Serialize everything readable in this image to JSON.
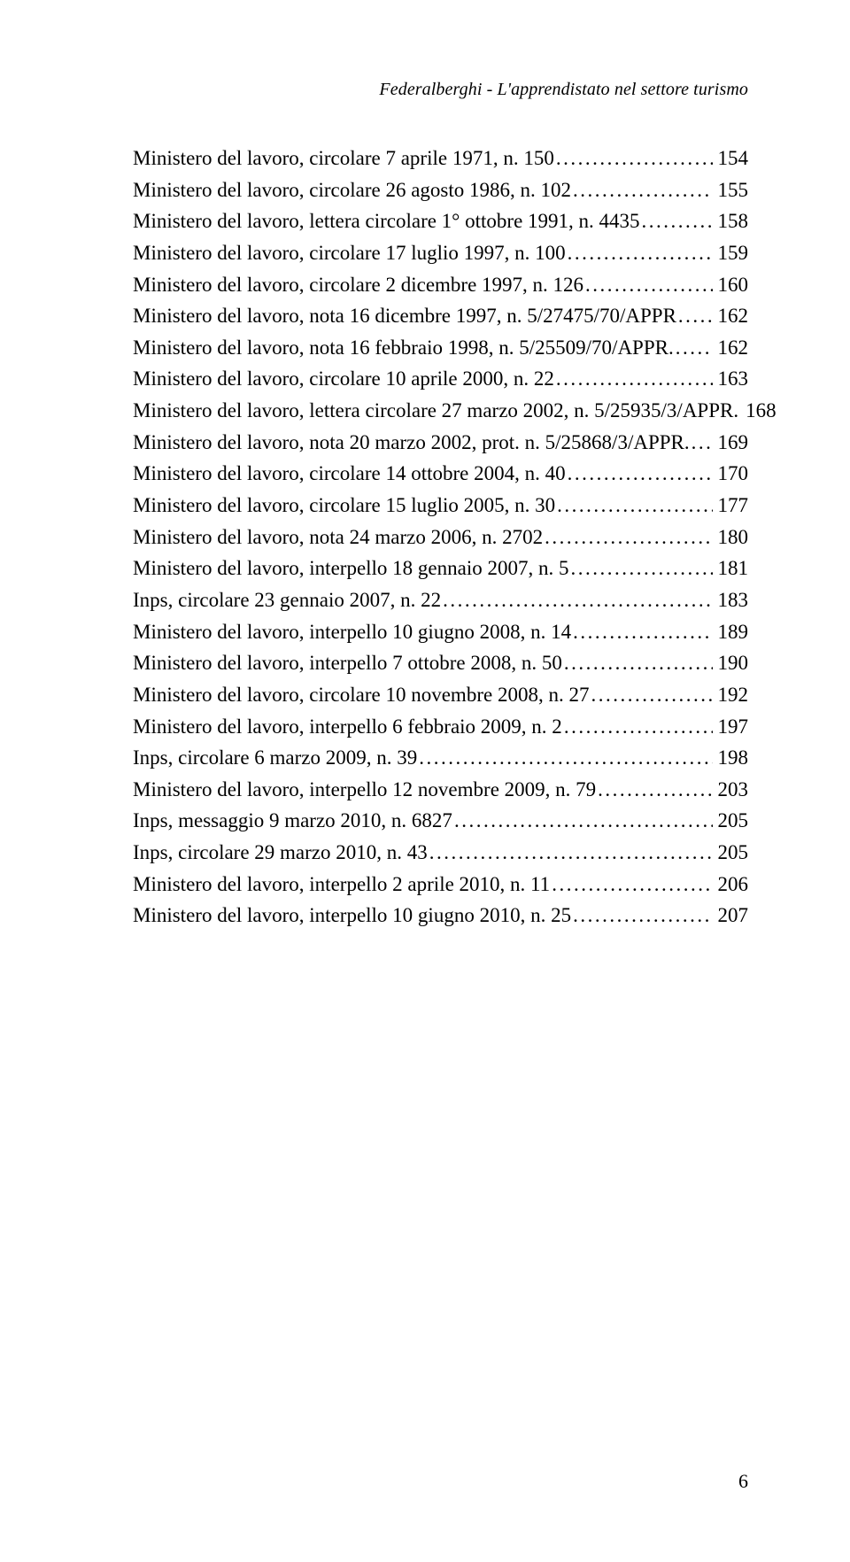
{
  "running_head": "Federalberghi - L'apprendistato nel settore turismo",
  "page_number": "6",
  "entries": [
    {
      "title": "Ministero del lavoro, circolare 7 aprile 1971, n. 150",
      "page": "154"
    },
    {
      "title": "Ministero del lavoro, circolare 26 agosto 1986, n. 102",
      "page": "155"
    },
    {
      "title": "Ministero del lavoro, lettera circolare 1° ottobre 1991, n. 4435",
      "page": "158"
    },
    {
      "title": "Ministero del lavoro, circolare 17 luglio 1997, n. 100",
      "page": "159"
    },
    {
      "title": "Ministero del lavoro, circolare 2 dicembre 1997, n. 126",
      "page": "160"
    },
    {
      "title": "Ministero del lavoro, nota 16 dicembre 1997, n. 5/27475/70/APPR",
      "page": "162"
    },
    {
      "title": "Ministero del lavoro, nota 16 febbraio 1998, n. 5/25509/70/APPR.",
      "page": "162"
    },
    {
      "title": "Ministero del lavoro, circolare 10 aprile 2000, n. 22",
      "page": "163"
    },
    {
      "title": "Ministero del lavoro, lettera circolare 27 marzo 2002, n. 5/25935/3/APPR.",
      "page": "168"
    },
    {
      "title": "Ministero del lavoro, nota 20 marzo 2002, prot. n. 5/25868/3/APPR.",
      "page": "169"
    },
    {
      "title": "Ministero del lavoro, circolare 14 ottobre 2004, n. 40",
      "page": "170"
    },
    {
      "title": "Ministero del lavoro, circolare 15 luglio 2005, n. 30",
      "page": "177"
    },
    {
      "title": "Ministero del lavoro, nota 24 marzo 2006, n. 2702",
      "page": "180"
    },
    {
      "title": "Ministero del lavoro, interpello 18 gennaio 2007, n. 5",
      "page": "181"
    },
    {
      "title": "Inps, circolare 23 gennaio 2007, n. 22",
      "page": "183"
    },
    {
      "title": "Ministero del lavoro, interpello 10 giugno 2008, n. 14",
      "page": "189"
    },
    {
      "title": "Ministero del lavoro, interpello 7 ottobre 2008, n. 50",
      "page": "190"
    },
    {
      "title": "Ministero del lavoro, circolare 10 novembre 2008, n. 27",
      "page": "192"
    },
    {
      "title": "Ministero del lavoro, interpello 6 febbraio 2009, n. 2",
      "page": "197"
    },
    {
      "title": "Inps, circolare 6 marzo 2009, n. 39",
      "page": "198"
    },
    {
      "title": "Ministero del lavoro, interpello 12 novembre 2009, n. 79",
      "page": "203"
    },
    {
      "title": "Inps, messaggio 9 marzo 2010, n. 6827",
      "page": "205"
    },
    {
      "title": "Inps, circolare 29 marzo 2010, n. 43",
      "page": "205"
    },
    {
      "title": "Ministero del lavoro, interpello 2 aprile 2010, n. 11",
      "page": "206"
    },
    {
      "title": "Ministero del lavoro, interpello 10 giugno 2010, n. 25",
      "page": "207"
    }
  ]
}
